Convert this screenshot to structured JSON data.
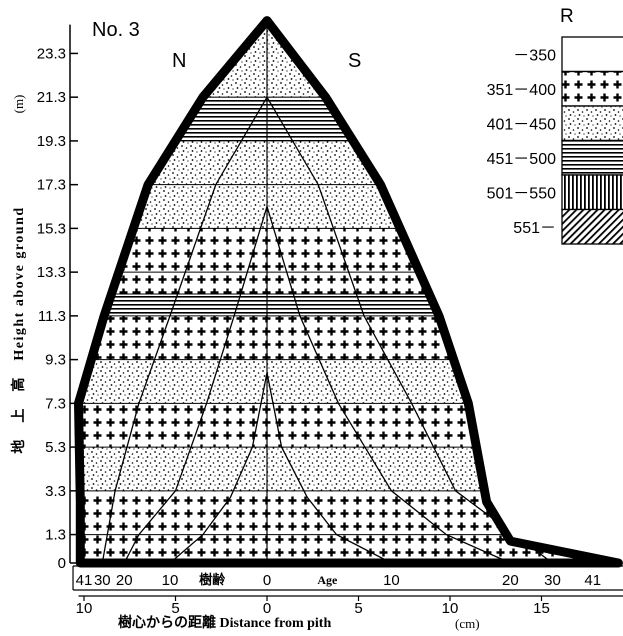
{
  "chart_data": {
    "type": "area",
    "title": "No. 3",
    "ylabel": "地　上　高　Height above ground",
    "ylabel_unit": "(m)",
    "xlabel": "樹心からの距離 Distance from pith",
    "xlabel_unit": "(cm)",
    "side_labels": [
      "N",
      "S"
    ],
    "age_label_jp": "樹齢",
    "age_label_en": "Age",
    "y_ticks": [
      0,
      1.3,
      3.3,
      5.3,
      7.3,
      9.3,
      11.3,
      13.3,
      15.3,
      17.3,
      19.3,
      21.3,
      23.3
    ],
    "y_tick_labels": [
      "0",
      "1.3",
      "3.3",
      "5.3",
      "7.3",
      "9.3",
      "11.3",
      "13.3",
      "15.3",
      "17.3",
      "19.3",
      "21.3",
      "23.3"
    ],
    "ylim": [
      0,
      24.8
    ],
    "x_distance_ticks": [
      -10,
      -5,
      0,
      5,
      10,
      15
    ],
    "x_distance_tick_labels": [
      "10",
      "5",
      "0",
      "5",
      "10",
      "15"
    ],
    "xlim": [
      -10.9,
      19.2
    ],
    "age_ticks": {
      "north": [
        {
          "label": "41",
          "x": -10.0
        },
        {
          "label": "30",
          "x": -9.0
        },
        {
          "label": "20",
          "x": -7.8
        },
        {
          "label": "10",
          "x": -5.3
        },
        {
          "label": "0",
          "x": 0
        }
      ],
      "south": [
        {
          "label": "10",
          "x": 6.8
        },
        {
          "label": "20",
          "x": 13.3
        },
        {
          "label": "30",
          "x": 15.6
        },
        {
          "label": "41",
          "x": 17.8
        }
      ]
    },
    "legend_title": "R",
    "legend": [
      {
        "label": "－350",
        "pattern": "blank"
      },
      {
        "label": "351－400",
        "pattern": "cross"
      },
      {
        "label": "401－450",
        "pattern": "dots"
      },
      {
        "label": "451－500",
        "pattern": "hlines"
      },
      {
        "label": "501－550",
        "pattern": "vlines"
      },
      {
        "label": "551－",
        "pattern": "diag"
      }
    ],
    "outline": {
      "north": [
        [
          0,
          24.8
        ],
        [
          -3.5,
          21.3
        ],
        [
          -6.5,
          17.3
        ],
        [
          -8.9,
          11.3
        ],
        [
          -10.3,
          7.3
        ],
        [
          -10.2,
          2.8
        ],
        [
          -10.2,
          0
        ]
      ],
      "south": [
        [
          0,
          24.8
        ],
        [
          3.2,
          21.3
        ],
        [
          6.2,
          17.3
        ],
        [
          9.4,
          11.3
        ],
        [
          11.0,
          7.3
        ],
        [
          12.0,
          2.8
        ],
        [
          13.3,
          1.0
        ],
        [
          19.2,
          0
        ]
      ]
    },
    "bands": [
      {
        "y": [
          0,
          1.3
        ],
        "pattern": "cross"
      },
      {
        "y": [
          1.3,
          3.3
        ],
        "pattern": "cross"
      },
      {
        "y": [
          3.3,
          5.3
        ],
        "pattern": "dots"
      },
      {
        "y": [
          5.3,
          7.3
        ],
        "pattern": "cross"
      },
      {
        "y": [
          7.3,
          9.3
        ],
        "pattern": "dots"
      },
      {
        "y": [
          9.3,
          11.3
        ],
        "pattern": "cross"
      },
      {
        "y": [
          11.3,
          12.3
        ],
        "pattern": "hlines"
      },
      {
        "y": [
          12.3,
          13.3
        ],
        "pattern": "cross"
      },
      {
        "y": [
          13.3,
          15.3
        ],
        "pattern": "cross"
      },
      {
        "y": [
          15.3,
          17.3
        ],
        "pattern": "dots"
      },
      {
        "y": [
          17.3,
          19.3
        ],
        "pattern": "dots"
      },
      {
        "y": [
          19.3,
          21.3
        ],
        "pattern": "hlines"
      },
      {
        "y": [
          21.3,
          24.8
        ],
        "pattern": "dots"
      }
    ],
    "growth_rings": [
      {
        "age": 10,
        "north": [
          [
            0,
            8.7
          ],
          [
            -0.8,
            5.3
          ],
          [
            -2.0,
            3.0
          ],
          [
            -3.5,
            1.3
          ],
          [
            -5.3,
            0
          ]
        ],
        "south": [
          [
            0,
            8.7
          ],
          [
            0.8,
            5.3
          ],
          [
            2.2,
            3.0
          ],
          [
            3.8,
            1.3
          ],
          [
            6.8,
            0
          ]
        ]
      },
      {
        "age": 20,
        "north": [
          [
            0,
            16.3
          ],
          [
            -1.8,
            11.3
          ],
          [
            -3.3,
            7.3
          ],
          [
            -5.0,
            3.3
          ],
          [
            -7.0,
            1.3
          ],
          [
            -7.8,
            0
          ]
        ],
        "south": [
          [
            0,
            16.3
          ],
          [
            1.8,
            11.3
          ],
          [
            3.9,
            7.3
          ],
          [
            6.8,
            3.3
          ],
          [
            9.8,
            1.3
          ],
          [
            13.3,
            0
          ]
        ]
      },
      {
        "age": 30,
        "north": [
          [
            0,
            21.3
          ],
          [
            -2.8,
            17.3
          ],
          [
            -5.3,
            11.3
          ],
          [
            -7.0,
            7.3
          ],
          [
            -8.3,
            3.3
          ],
          [
            -9.0,
            0
          ]
        ],
        "south": [
          [
            0,
            21.3
          ],
          [
            2.8,
            17.3
          ],
          [
            5.3,
            11.3
          ],
          [
            7.9,
            7.3
          ],
          [
            10.3,
            3.3
          ],
          [
            15.6,
            0
          ]
        ]
      }
    ]
  }
}
